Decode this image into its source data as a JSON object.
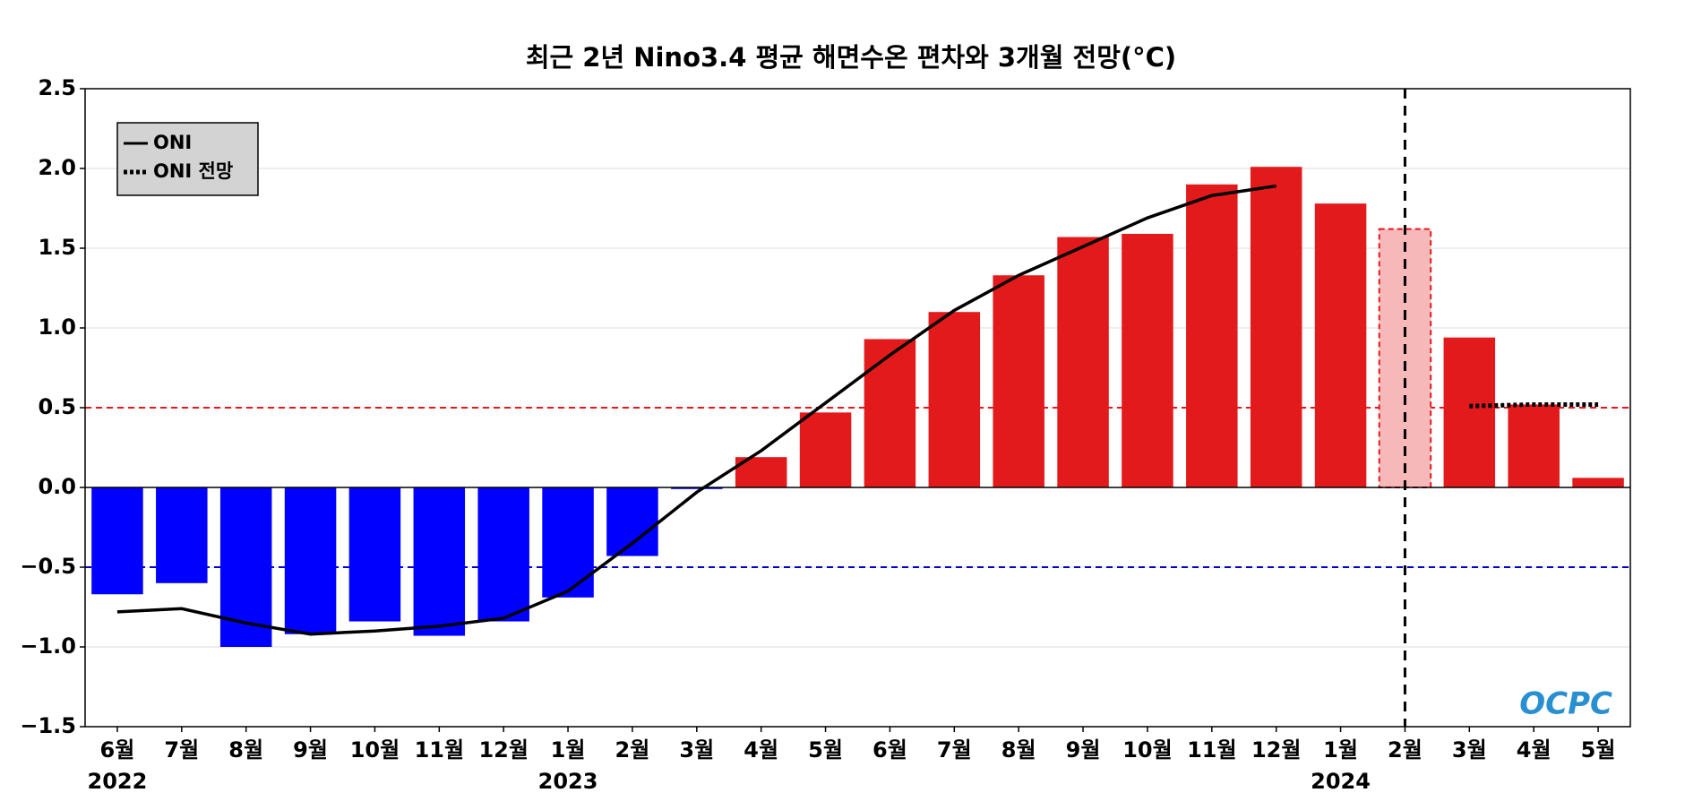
{
  "chart_data": {
    "type": "bar",
    "title": "최근 2년 Nino3.4 평균 해면수온 편차와 3개월 전망(°C)",
    "categories": [
      "6월",
      "7월",
      "8월",
      "9월",
      "10월",
      "11월",
      "12월",
      "1월",
      "2월",
      "3월",
      "4월",
      "5월",
      "6월",
      "7월",
      "8월",
      "9월",
      "10월",
      "11월",
      "12월",
      "1월",
      "2월",
      "3월",
      "4월",
      "5월"
    ],
    "years": [
      {
        "index": 0,
        "label": "2022"
      },
      {
        "index": 7,
        "label": "2023"
      },
      {
        "index": 19,
        "label": "2024"
      }
    ],
    "values": [
      -0.67,
      -0.6,
      -1.0,
      -0.92,
      -0.84,
      -0.93,
      -0.84,
      -0.69,
      -0.43,
      -0.01,
      0.19,
      0.47,
      0.93,
      1.1,
      1.33,
      1.57,
      1.59,
      1.9,
      2.01,
      1.78,
      1.62,
      0.94,
      0.52,
      0.06
    ],
    "bar_colors": [
      "#0000ff",
      "#0000ff",
      "#0000ff",
      "#0000ff",
      "#0000ff",
      "#0000ff",
      "#0000ff",
      "#0000ff",
      "#0000ff",
      "#0000ff",
      "#e31a1c",
      "#e31a1c",
      "#e31a1c",
      "#e31a1c",
      "#e31a1c",
      "#e31a1c",
      "#e31a1c",
      "#e31a1c",
      "#e31a1c",
      "#e31a1c",
      "#f6b8b8",
      "#e31a1c",
      "#e31a1c",
      "#e31a1c"
    ],
    "dashed_outline_bars": [
      20
    ],
    "series": [
      {
        "name": "ONI",
        "color": "#000000",
        "dash": "solid",
        "values": [
          -0.78,
          -0.76,
          -0.85,
          -0.92,
          -0.9,
          -0.87,
          -0.82,
          -0.65,
          -0.35,
          -0.03,
          0.23,
          0.53,
          0.83,
          1.11,
          1.33,
          1.51,
          1.69,
          1.83,
          1.89,
          null,
          null,
          null,
          null,
          null
        ]
      },
      {
        "name": "ONI 전망",
        "color": "#000000",
        "dash": "dotted",
        "values": [
          null,
          null,
          null,
          null,
          null,
          null,
          null,
          null,
          null,
          null,
          null,
          null,
          null,
          null,
          null,
          null,
          null,
          null,
          null,
          null,
          null,
          0.51,
          0.52,
          0.52
        ]
      }
    ],
    "hlines": [
      {
        "value": 0.5,
        "color": "#e31a1c"
      },
      {
        "value": -0.5,
        "color": "#0000cc"
      }
    ],
    "vline_category_index": 20,
    "ylim": [
      -1.5,
      2.5
    ],
    "yticks": [
      {
        "value": -1.5,
        "label": "−1.5"
      },
      {
        "value": -1.0,
        "label": "−1.0"
      },
      {
        "value": -0.5,
        "label": "−0.5"
      },
      {
        "value": 0,
        "label": "0.0"
      },
      0.5,
      {
        "value": 1.0,
        "label": "1.0"
      },
      1.5,
      {
        "value": 2.0,
        "label": "2.0"
      },
      2.5
    ],
    "grid": true,
    "legend": "upper left",
    "logo": "OCPC"
  }
}
